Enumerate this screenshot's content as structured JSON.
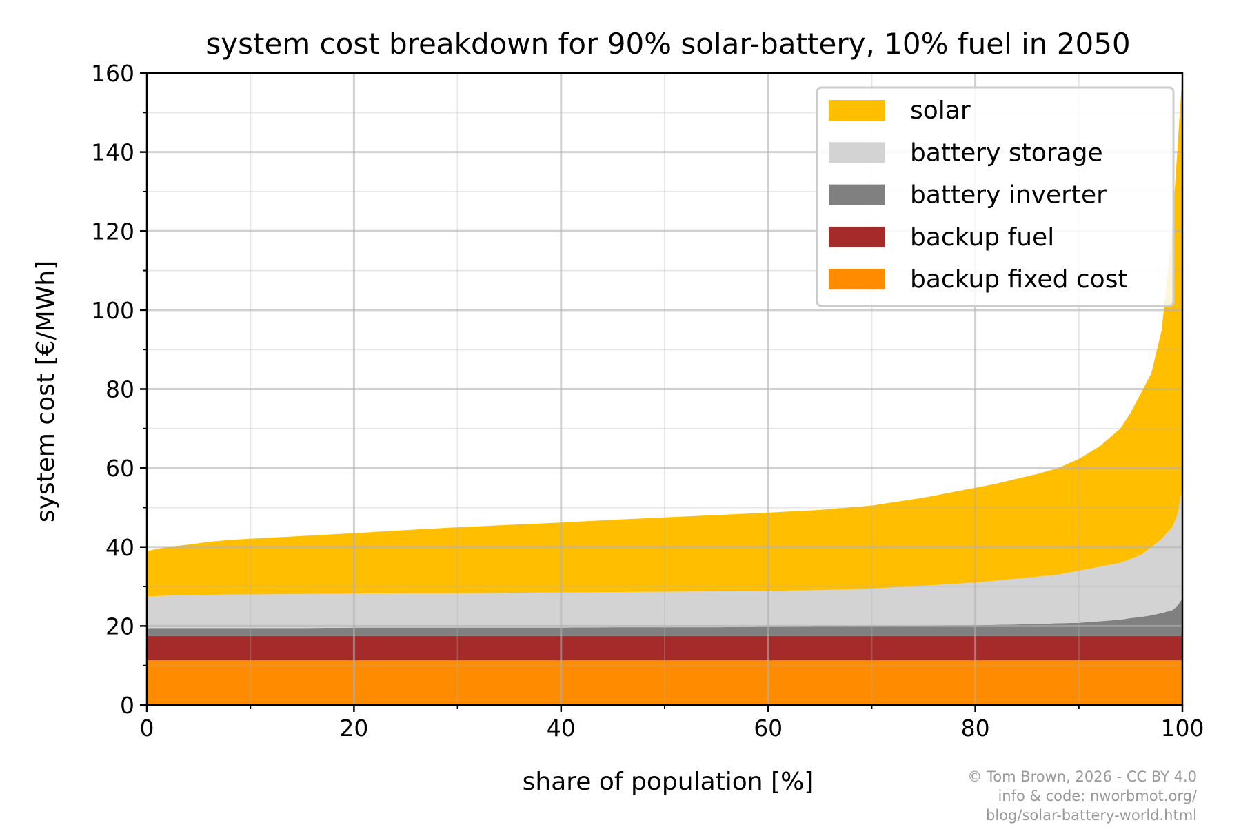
{
  "chart_data": {
    "type": "area",
    "stacked": true,
    "title": "system cost breakdown for 90% solar-battery, 10% fuel in 2050",
    "xlabel": "share of population [%]",
    "ylabel": "system cost [€/MWh]",
    "xlim": [
      0,
      100
    ],
    "ylim": [
      0,
      160
    ],
    "xticks": [
      "0",
      "20",
      "40",
      "60",
      "80",
      "100"
    ],
    "yticks": [
      "0",
      "20",
      "40",
      "60",
      "80",
      "100",
      "120",
      "140",
      "160"
    ],
    "grid": true,
    "legend_position": "top-right",
    "x": [
      0,
      2,
      4,
      6,
      8,
      10,
      15,
      20,
      25,
      30,
      35,
      40,
      45,
      50,
      55,
      60,
      65,
      70,
      75,
      80,
      82,
      84,
      86,
      88,
      90,
      92,
      94,
      95,
      96,
      97,
      98,
      99,
      99.5,
      100
    ],
    "series": [
      {
        "name": "backup fixed cost",
        "color": "#ff8c00",
        "values": [
          11.3,
          11.3,
          11.3,
          11.3,
          11.3,
          11.3,
          11.3,
          11.3,
          11.3,
          11.3,
          11.3,
          11.3,
          11.3,
          11.3,
          11.3,
          11.3,
          11.3,
          11.3,
          11.3,
          11.3,
          11.3,
          11.3,
          11.3,
          11.3,
          11.3,
          11.3,
          11.3,
          11.3,
          11.3,
          11.3,
          11.3,
          11.3,
          11.3,
          11.3
        ]
      },
      {
        "name": "backup fuel",
        "color": "#a52a2a",
        "values": [
          6.2,
          6.2,
          6.2,
          6.2,
          6.2,
          6.2,
          6.2,
          6.2,
          6.2,
          6.2,
          6.2,
          6.2,
          6.2,
          6.2,
          6.2,
          6.2,
          6.2,
          6.2,
          6.2,
          6.2,
          6.2,
          6.2,
          6.2,
          6.2,
          6.2,
          6.2,
          6.2,
          6.2,
          6.2,
          6.2,
          6.2,
          6.2,
          6.2,
          6.2
        ]
      },
      {
        "name": "battery inverter",
        "color": "#808080",
        "values": [
          2,
          2,
          2,
          2,
          2,
          2,
          2,
          2.1,
          2.1,
          2.1,
          2.1,
          2.1,
          2.2,
          2.2,
          2.2,
          2.3,
          2.4,
          2.5,
          2.6,
          2.7,
          2.8,
          2.9,
          3,
          3.2,
          3.3,
          3.7,
          4.1,
          4.5,
          4.8,
          5.2,
          5.8,
          6.5,
          7.5,
          9.5
        ]
      },
      {
        "name": "battery storage",
        "color": "#d3d3d3",
        "values": [
          8,
          8.2,
          8.3,
          8.4,
          8.5,
          8.5,
          8.6,
          8.6,
          8.7,
          8.7,
          8.8,
          8.9,
          8.9,
          9,
          9.1,
          9.1,
          9.2,
          9.5,
          10.1,
          10.8,
          11.2,
          11.6,
          12,
          12.3,
          13.2,
          13.8,
          14.4,
          15,
          15.7,
          17.3,
          18.7,
          21,
          23,
          28
        ]
      },
      {
        "name": "solar",
        "color": "#ffbf00",
        "values": [
          11.5,
          12.3,
          12.8,
          13.4,
          13.8,
          14.1,
          14.7,
          15.3,
          16,
          16.7,
          17.2,
          17.7,
          18.3,
          18.8,
          19.3,
          19.8,
          20.3,
          21,
          22.3,
          24,
          24.5,
          25.3,
          26,
          27,
          28.3,
          30.5,
          34,
          37,
          41,
          44,
          53,
          75,
          92,
          105
        ]
      }
    ],
    "legend_order": [
      "solar",
      "battery storage",
      "battery inverter",
      "backup fuel",
      "backup fixed cost"
    ]
  },
  "credits": {
    "line1": "© Tom Brown, 2026 - CC BY 4.0",
    "line2": "info & code: nworbmot.org/",
    "line3": "blog/solar-battery-world.html"
  }
}
